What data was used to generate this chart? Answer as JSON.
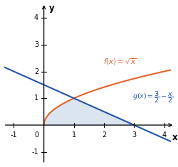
{
  "xlim": [
    -1.4,
    4.4
  ],
  "ylim": [
    -1.5,
    4.6
  ],
  "xticks": [
    -1,
    1,
    2,
    3,
    4
  ],
  "yticks": [
    -1,
    1,
    2,
    3,
    4
  ],
  "f_color": "#E8622A",
  "g_color": "#2255AA",
  "shade_color": "#C8D8E8",
  "shade_alpha": 0.65,
  "figsize": [
    2.5,
    2.35
  ],
  "dpi": 100
}
